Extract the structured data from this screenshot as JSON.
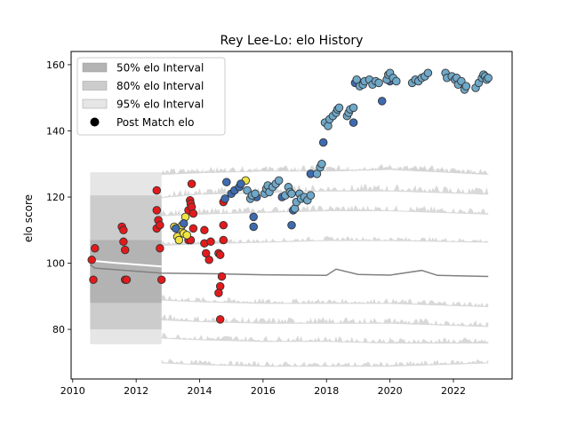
{
  "chart_data": {
    "type": "scatter",
    "title": "Rey Lee-Lo: elo History",
    "xlabel": "",
    "ylabel": "elo score",
    "xlim": [
      2009.95,
      2023.85
    ],
    "ylim": [
      65,
      164
    ],
    "x_ticks": [
      2010,
      2012,
      2014,
      2016,
      2018,
      2020,
      2022
    ],
    "y_ticks": [
      80,
      100,
      120,
      140,
      160
    ],
    "grid": false,
    "legend": {
      "placement": "top-left",
      "entries": [
        "50% elo Interval",
        "80% elo Interval",
        "95% elo Interval",
        "Post Match elo"
      ]
    },
    "colors": {
      "band_50": "#b3b3b3",
      "band_80": "#cccccc",
      "band_95": "#e6e6e6",
      "median_line": "#808080",
      "early_points": "#e31a1c",
      "mid_points": "#f0e442",
      "dark_points": "#3e6bb0",
      "light_points": "#6fa8c8"
    },
    "median_line": [
      [
        2010.55,
        99.5
      ],
      [
        2010.7,
        98.5
      ],
      [
        2012.8,
        97.0
      ],
      [
        2014.5,
        96.8
      ],
      [
        2016.0,
        96.5
      ],
      [
        2018.0,
        96.3
      ],
      [
        2018.3,
        98.2
      ],
      [
        2019.0,
        96.6
      ],
      [
        2020.0,
        96.4
      ],
      [
        2021.0,
        97.8
      ],
      [
        2021.5,
        96.3
      ],
      [
        2023.1,
        96.0
      ]
    ],
    "band_upper_steps": [
      [
        2012.8,
        127.0,
        120.0,
        114.5,
        105.5
      ],
      [
        2014.0,
        127.5,
        121.0,
        115.0,
        106.0
      ],
      [
        2016.0,
        128.0,
        121.5,
        115.5,
        106.5
      ],
      [
        2018.0,
        128.0,
        122.0,
        116.0,
        107.0
      ],
      [
        2020.0,
        128.5,
        122.0,
        116.0,
        107.0
      ],
      [
        2023.1,
        127.0,
        121.0,
        115.0,
        106.5
      ]
    ],
    "band_lower_steps": [
      [
        2012.8,
        89.0,
        83.0,
        77.5,
        70.0
      ],
      [
        2014.0,
        88.5,
        82.5,
        77.0,
        69.5
      ],
      [
        2016.0,
        88.0,
        82.0,
        76.5,
        69.0
      ],
      [
        2018.0,
        88.0,
        82.0,
        76.5,
        69.0
      ],
      [
        2020.0,
        88.0,
        82.0,
        76.0,
        69.0
      ],
      [
        2023.1,
        87.0,
        81.0,
        76.0,
        70.0
      ]
    ],
    "early_band": {
      "x": [
        2010.55,
        2012.8
      ],
      "p95": [
        75.5,
        127.5
      ],
      "p80": [
        80.0,
        120.5
      ],
      "p50": [
        88.0,
        107.0
      ]
    },
    "series": [
      {
        "group": "early",
        "points": [
          [
            2010.6,
            101.0
          ],
          [
            2010.65,
            95.0
          ],
          [
            2010.7,
            104.5
          ],
          [
            2011.55,
            111.0
          ],
          [
            2011.6,
            106.5
          ],
          [
            2011.65,
            95.0
          ],
          [
            2011.6,
            110.0
          ],
          [
            2011.65,
            104.0
          ],
          [
            2011.7,
            95.0
          ],
          [
            2012.65,
            122.0
          ],
          [
            2012.65,
            116.0
          ],
          [
            2012.7,
            113.0
          ],
          [
            2012.65,
            110.5
          ],
          [
            2012.75,
            111.5
          ],
          [
            2012.75,
            104.5
          ],
          [
            2012.8,
            95.0
          ],
          [
            2013.65,
            116.0
          ],
          [
            2013.7,
            119.0
          ],
          [
            2013.72,
            118.0
          ],
          [
            2013.75,
            124.0
          ],
          [
            2013.75,
            117.0
          ],
          [
            2013.8,
            115.0
          ],
          [
            2013.8,
            110.5
          ],
          [
            2013.65,
            107.0
          ],
          [
            2013.72,
            107.0
          ],
          [
            2014.15,
            110.0
          ],
          [
            2014.15,
            106.0
          ],
          [
            2014.2,
            103.0
          ],
          [
            2014.3,
            101.0
          ],
          [
            2014.35,
            106.5
          ],
          [
            2014.6,
            103.0
          ],
          [
            2014.65,
            102.5
          ],
          [
            2014.7,
            96.0
          ],
          [
            2014.65,
            93.0
          ],
          [
            2014.6,
            91.0
          ],
          [
            2014.65,
            83.0
          ],
          [
            2014.75,
            107.0
          ],
          [
            2014.75,
            111.5
          ],
          [
            2014.75,
            118.5
          ]
        ]
      },
      {
        "group": "mid",
        "points": [
          [
            2013.2,
            111.0
          ],
          [
            2013.3,
            108.0
          ],
          [
            2013.35,
            107.0
          ],
          [
            2013.4,
            110.5
          ],
          [
            2013.45,
            111.5
          ],
          [
            2013.5,
            109.0
          ],
          [
            2013.55,
            114.0
          ],
          [
            2013.6,
            108.5
          ],
          [
            2015.45,
            125.0
          ]
        ]
      },
      {
        "group": "dark",
        "points": [
          [
            2013.25,
            110.5
          ],
          [
            2013.5,
            112.0
          ],
          [
            2014.8,
            119.5
          ],
          [
            2014.85,
            124.5
          ],
          [
            2015.0,
            121.0
          ],
          [
            2015.1,
            122.0
          ],
          [
            2015.25,
            123.0
          ],
          [
            2015.3,
            124.0
          ],
          [
            2015.7,
            114.0
          ],
          [
            2015.7,
            111.0
          ],
          [
            2015.8,
            120.0
          ],
          [
            2016.6,
            120.0
          ],
          [
            2016.9,
            111.5
          ],
          [
            2016.95,
            116.0
          ],
          [
            2017.5,
            127.0
          ],
          [
            2017.9,
            136.5
          ],
          [
            2018.85,
            142.5
          ],
          [
            2018.9,
            154.5
          ],
          [
            2019.75,
            149.0
          ],
          [
            2020.0,
            155.0
          ]
        ]
      },
      {
        "group": "light",
        "points": [
          [
            2015.5,
            122.0
          ],
          [
            2015.6,
            119.5
          ],
          [
            2015.65,
            120.5
          ],
          [
            2015.75,
            121.0
          ],
          [
            2016.05,
            121.0
          ],
          [
            2016.1,
            122.5
          ],
          [
            2016.15,
            123.5
          ],
          [
            2016.2,
            121.5
          ],
          [
            2016.3,
            123.0
          ],
          [
            2016.4,
            124.0
          ],
          [
            2016.5,
            125.0
          ],
          [
            2016.7,
            120.5
          ],
          [
            2016.8,
            123.0
          ],
          [
            2016.85,
            121.5
          ],
          [
            2016.9,
            121.0
          ],
          [
            2017.0,
            116.5
          ],
          [
            2017.05,
            118.5
          ],
          [
            2017.15,
            121.0
          ],
          [
            2017.2,
            119.5
          ],
          [
            2017.3,
            120.0
          ],
          [
            2017.4,
            119.0
          ],
          [
            2017.5,
            120.5
          ],
          [
            2017.7,
            127.0
          ],
          [
            2017.8,
            129.0
          ],
          [
            2017.85,
            130.0
          ],
          [
            2017.95,
            142.5
          ],
          [
            2018.05,
            141.5
          ],
          [
            2018.1,
            143.5
          ],
          [
            2018.2,
            144.5
          ],
          [
            2018.3,
            145.5
          ],
          [
            2018.35,
            146.5
          ],
          [
            2018.4,
            147.0
          ],
          [
            2018.65,
            144.5
          ],
          [
            2018.7,
            145.5
          ],
          [
            2018.75,
            146.5
          ],
          [
            2018.85,
            147.0
          ],
          [
            2018.95,
            155.5
          ],
          [
            2019.05,
            153.5
          ],
          [
            2019.15,
            154.0
          ],
          [
            2019.2,
            155.0
          ],
          [
            2019.35,
            155.5
          ],
          [
            2019.45,
            154.0
          ],
          [
            2019.55,
            155.0
          ],
          [
            2019.65,
            154.5
          ],
          [
            2019.9,
            155.5
          ],
          [
            2019.95,
            157.0
          ],
          [
            2020.0,
            157.5
          ],
          [
            2020.1,
            156.0
          ],
          [
            2020.2,
            155.0
          ],
          [
            2020.7,
            154.5
          ],
          [
            2020.8,
            155.5
          ],
          [
            2020.9,
            155.0
          ],
          [
            2021.0,
            156.0
          ],
          [
            2021.1,
            156.5
          ],
          [
            2021.2,
            157.5
          ],
          [
            2021.75,
            157.5
          ],
          [
            2021.8,
            156.0
          ],
          [
            2021.95,
            156.5
          ],
          [
            2022.05,
            155.5
          ],
          [
            2022.1,
            156.0
          ],
          [
            2022.15,
            154.0
          ],
          [
            2022.25,
            155.0
          ],
          [
            2022.35,
            152.5
          ],
          [
            2022.4,
            153.5
          ],
          [
            2022.7,
            153.0
          ],
          [
            2022.8,
            154.5
          ],
          [
            2022.9,
            156.0
          ],
          [
            2022.95,
            157.0
          ],
          [
            2023.0,
            156.5
          ],
          [
            2023.05,
            155.5
          ],
          [
            2023.1,
            156.0
          ]
        ]
      }
    ]
  }
}
